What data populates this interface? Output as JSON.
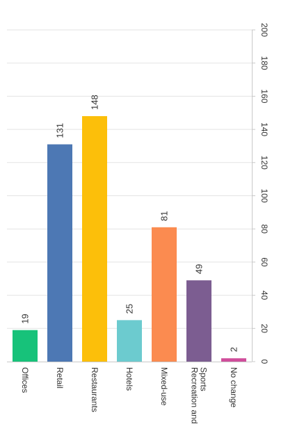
{
  "chart_data": {
    "type": "bar",
    "categories": [
      "Offices",
      "Retail",
      "Restaurants",
      "Hotels",
      "Mixed-use",
      "Recreation and Sports",
      "No change"
    ],
    "category_lines": [
      [
        "Offices"
      ],
      [
        "Retail"
      ],
      [
        "Restaurants"
      ],
      [
        "Hotels"
      ],
      [
        "Mixed-use"
      ],
      [
        "Recreation and",
        "Sports"
      ],
      [
        "No change"
      ]
    ],
    "values": [
      19,
      131,
      148,
      25,
      81,
      49,
      2
    ],
    "data_labels": [
      "19",
      "131",
      "148",
      "25",
      "81",
      "49",
      "2"
    ],
    "colors": [
      "#17c27a",
      "#4d78b4",
      "#fcbf0a",
      "#6ccbcf",
      "#fb8b50",
      "#7c5d91",
      "#d04d9b"
    ],
    "ylim": [
      0,
      200
    ],
    "yticks": [
      0,
      20,
      40,
      60,
      80,
      100,
      120,
      140,
      160,
      180,
      200
    ],
    "ytick_labels": [
      "0",
      "20",
      "40",
      "60",
      "80",
      "100",
      "120",
      "140",
      "160",
      "180",
      "200"
    ],
    "grid": true,
    "orientation": "rotated-90-clockwise",
    "title": "",
    "xlabel": "",
    "ylabel": ""
  }
}
